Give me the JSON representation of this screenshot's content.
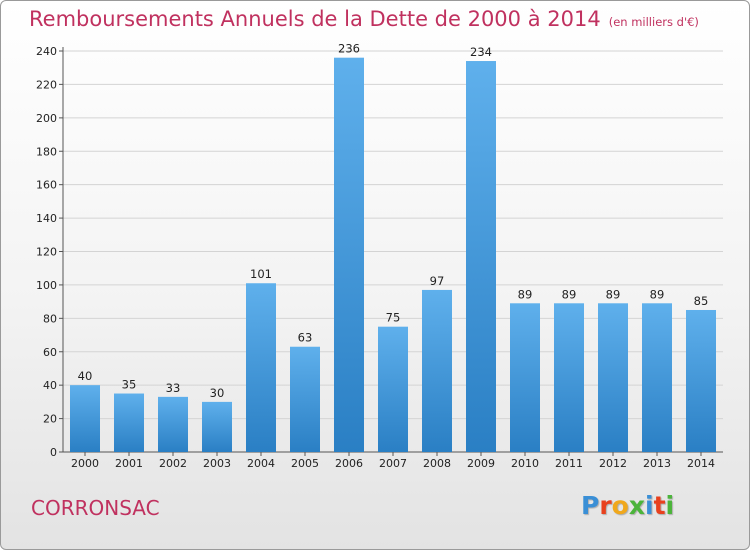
{
  "title": "Remboursements Annuels de la Dette de 2000 à 2014",
  "unit": "(en milliers d'€)",
  "commune": "CORRONSAC",
  "logo": [
    "P",
    "r",
    "o",
    "x",
    "i",
    "t",
    "i"
  ],
  "colors": {
    "title": "#c0315f",
    "bar_top": "#5fb0ec",
    "bar_bottom": "#2a7fc4",
    "logo": [
      "#3a8fd6",
      "#e8411e",
      "#f0a81c",
      "#4bb43a",
      "#3a8fd6",
      "#e8411e",
      "#4bb43a"
    ]
  },
  "chart_data": {
    "type": "bar",
    "title": "Remboursements Annuels de la Dette de 2000 à 2014",
    "ylabel": "en milliers d'€",
    "xlabel": "",
    "categories": [
      "2000",
      "2001",
      "2002",
      "2003",
      "2004",
      "2005",
      "2006",
      "2007",
      "2008",
      "2009",
      "2010",
      "2011",
      "2012",
      "2013",
      "2014"
    ],
    "values": [
      40,
      35,
      33,
      30,
      101,
      63,
      236,
      75,
      97,
      234,
      89,
      89,
      89,
      89,
      85
    ],
    "ylim": [
      0,
      240
    ],
    "yticks": [
      0,
      20,
      40,
      60,
      80,
      100,
      120,
      140,
      160,
      180,
      200,
      220,
      240
    ],
    "grid": true
  }
}
